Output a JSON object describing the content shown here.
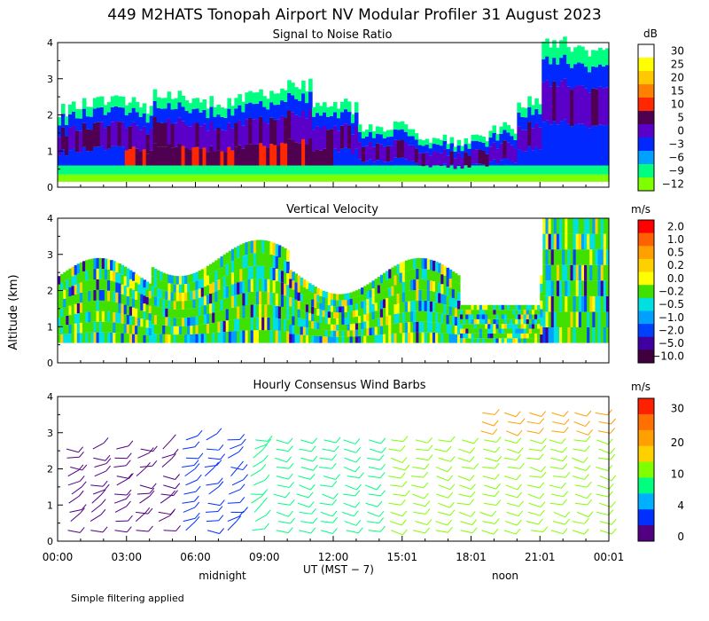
{
  "page": {
    "title": "449 M2HATS Tonopah Airport NV Modular Profiler 31 August 2023",
    "ylabel": "Altitude (km)",
    "xlabel": "UT  (MST − 7)",
    "midnight_label": "midnight",
    "noon_label": "noon",
    "footnote": "Simple filtering applied"
  },
  "chart_data": [
    {
      "type": "heatmap",
      "title": "Signal to Noise Ratio",
      "unit": "dB",
      "ylim": [
        0,
        4
      ],
      "yticks": [
        "0",
        "1",
        "2",
        "3",
        "4"
      ],
      "colorbar": [
        {
          "label": "30",
          "color": "#ffffff"
        },
        {
          "label": "25",
          "color": "#ffff00"
        },
        {
          "label": "20",
          "color": "#ffc800"
        },
        {
          "label": "15",
          "color": "#ff8000"
        },
        {
          "label": "10",
          "color": "#ff2800"
        },
        {
          "label": "5",
          "color": "#500050"
        },
        {
          "label": "0",
          "color": "#5a00c8"
        },
        {
          "label": "−3",
          "color": "#0028ff"
        },
        {
          "label": "−6",
          "color": "#00a0ff"
        },
        {
          "label": "−9",
          "color": "#00ff80"
        },
        {
          "label": "−12",
          "color": "#80ff00"
        }
      ]
    },
    {
      "type": "heatmap",
      "title": "Vertical Velocity",
      "unit": "m/s",
      "ylim": [
        0,
        4
      ],
      "yticks": [
        "0",
        "1",
        "2",
        "3",
        "4"
      ],
      "colorbar": [
        {
          "label": "2.0",
          "color": "#ff0000"
        },
        {
          "label": "1.0",
          "color": "#ff6000"
        },
        {
          "label": "0.5",
          "color": "#ffa000"
        },
        {
          "label": "0.2",
          "color": "#ffd000"
        },
        {
          "label": "0.0",
          "color": "#ffff00"
        },
        {
          "label": "−0.2",
          "color": "#40e000"
        },
        {
          "label": "−0.5",
          "color": "#00e0e0"
        },
        {
          "label": "−1.0",
          "color": "#00a0ff"
        },
        {
          "label": "−2.0",
          "color": "#0040ff"
        },
        {
          "label": "−5.0",
          "color": "#4000a0"
        },
        {
          "label": "−10.0",
          "color": "#400040"
        }
      ]
    },
    {
      "type": "wind_barbs",
      "title": "Hourly Consensus Wind Barbs",
      "unit": "m/s",
      "ylim": [
        0,
        4
      ],
      "yticks": [
        "0",
        "1",
        "2",
        "3",
        "4"
      ],
      "colorbar": [
        {
          "label": "30",
          "color": "#ff2000"
        },
        {
          "label": "20",
          "color": "#ffa000"
        },
        {
          "label": "10",
          "color": "#80ff00"
        },
        {
          "label": "4",
          "color": "#00b0ff"
        },
        {
          "label": "0",
          "color": "#500080"
        }
      ],
      "colorbar_colors": [
        "#ff2000",
        "#ff7000",
        "#ffa000",
        "#ffd000",
        "#80ff00",
        "#00ff80",
        "#00b0ff",
        "#0030ff",
        "#500080"
      ]
    }
  ],
  "x_axis": {
    "xlim_hours": [
      0,
      24
    ],
    "ticks": [
      {
        "label": "00:00",
        "hour": 0
      },
      {
        "label": "03:00",
        "hour": 3
      },
      {
        "label": "06:00",
        "hour": 6
      },
      {
        "label": "09:00",
        "hour": 9
      },
      {
        "label": "12:00",
        "hour": 12
      },
      {
        "label": "15:01",
        "hour": 15
      },
      {
        "label": "18:01",
        "hour": 18
      },
      {
        "label": "21:01",
        "hour": 21
      },
      {
        "label": "00:01",
        "hour": 24
      }
    ]
  }
}
